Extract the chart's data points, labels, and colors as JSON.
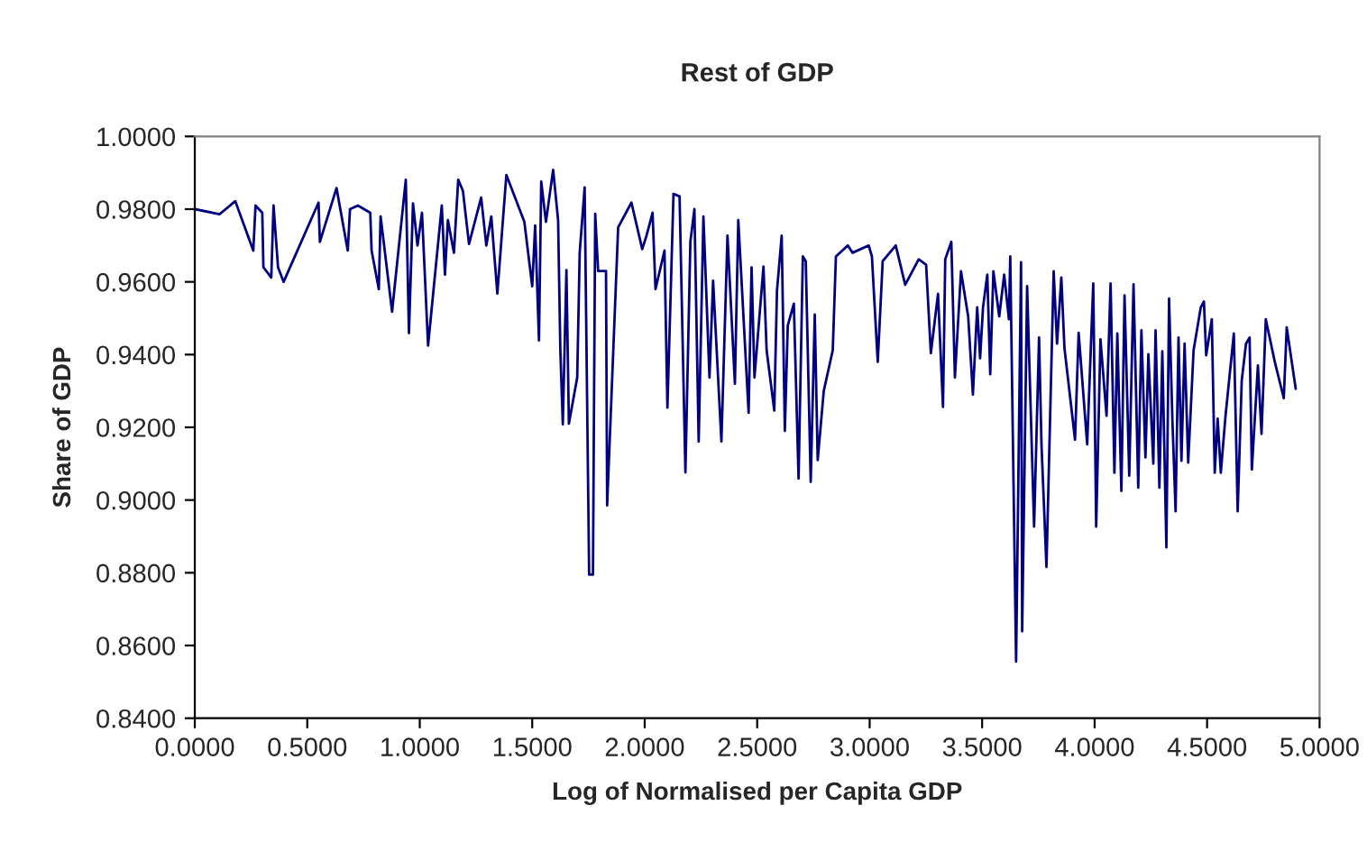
{
  "chart_data": {
    "type": "line",
    "title": "Rest of GDP",
    "xlabel": "Log of Normalised per Capita GDP",
    "ylabel": "Share of GDP",
    "xlim": [
      0,
      5
    ],
    "ylim": [
      0.84,
      1.0
    ],
    "xticks": [
      {
        "value": 0,
        "label": "0.0000"
      },
      {
        "value": 0.5,
        "label": "0.5000"
      },
      {
        "value": 1,
        "label": "1.0000"
      },
      {
        "value": 1.5,
        "label": "1.5000"
      },
      {
        "value": 2,
        "label": "2.0000"
      },
      {
        "value": 2.5,
        "label": "2.5000"
      },
      {
        "value": 3,
        "label": "3.0000"
      },
      {
        "value": 3.5,
        "label": "3.5000"
      },
      {
        "value": 4,
        "label": "4.0000"
      },
      {
        "value": 4.5,
        "label": "4.5000"
      },
      {
        "value": 5,
        "label": "5.0000"
      }
    ],
    "yticks": [
      {
        "value": 0.84,
        "label": "0.8400"
      },
      {
        "value": 0.86,
        "label": "0.8600"
      },
      {
        "value": 0.88,
        "label": "0.8800"
      },
      {
        "value": 0.9,
        "label": "0.9000"
      },
      {
        "value": 0.92,
        "label": "0.9200"
      },
      {
        "value": 0.94,
        "label": "0.9400"
      },
      {
        "value": 0.96,
        "label": "0.9600"
      },
      {
        "value": 0.98,
        "label": "0.9800"
      },
      {
        "value": 1.0,
        "label": "1.0000"
      }
    ],
    "grid": false,
    "legend": false,
    "marker": "none",
    "line_style": "solid",
    "series": [
      {
        "color": "#000080",
        "x": [
          0,
          0.11,
          0.18,
          0.26,
          0.27,
          0.3,
          0.305,
          0.34,
          0.35,
          0.37,
          0.395,
          0.55,
          0.556,
          0.63,
          0.68,
          0.69,
          0.725,
          0.78,
          0.786,
          0.818,
          0.826,
          0.877,
          0.938,
          0.952,
          0.97,
          0.99,
          1.01,
          1.037,
          1.098,
          1.112,
          1.125,
          1.152,
          1.171,
          1.192,
          1.219,
          1.273,
          1.296,
          1.318,
          1.345,
          1.385,
          1.465,
          1.5,
          1.513,
          1.53,
          1.54,
          1.561,
          1.593,
          1.615,
          1.625,
          1.636,
          1.652,
          1.663,
          1.7,
          1.711,
          1.733,
          1.753,
          1.77,
          1.78,
          1.793,
          1.828,
          1.833,
          1.882,
          1.941,
          1.989,
          2.008,
          2.035,
          2.048,
          2.088,
          2.101,
          2.128,
          2.155,
          2.181,
          2.203,
          2.221,
          2.24,
          2.261,
          2.288,
          2.304,
          2.341,
          2.368,
          2.401,
          2.416,
          2.462,
          2.475,
          2.488,
          2.528,
          2.542,
          2.576,
          2.588,
          2.609,
          2.623,
          2.636,
          2.663,
          2.684,
          2.703,
          2.716,
          2.738,
          2.756,
          2.769,
          2.796,
          2.836,
          2.85,
          2.903,
          2.924,
          2.996,
          3.01,
          3.036,
          3.058,
          3.116,
          3.158,
          3.218,
          3.251,
          3.272,
          3.304,
          3.326,
          3.336,
          3.363,
          3.379,
          3.406,
          3.438,
          3.459,
          3.478,
          3.491,
          3.504,
          3.523,
          3.536,
          3.55,
          3.576,
          3.598,
          3.619,
          3.625,
          3.651,
          3.673,
          3.678,
          3.7,
          3.731,
          3.753,
          3.764,
          3.786,
          3.818,
          3.833,
          3.852,
          3.866,
          3.913,
          3.929,
          3.967,
          3.994,
          4.007,
          4.026,
          4.053,
          4.071,
          4.088,
          4.101,
          4.119,
          4.133,
          4.154,
          4.173,
          4.194,
          4.208,
          4.226,
          4.239,
          4.261,
          4.271,
          4.288,
          4.301,
          4.319,
          4.331,
          4.346,
          4.36,
          4.373,
          4.386,
          4.4,
          4.416,
          4.44,
          4.472,
          4.486,
          4.496,
          4.521,
          4.534,
          4.547,
          4.561,
          4.582,
          4.619,
          4.636,
          4.654,
          4.673,
          4.689,
          4.699,
          4.726,
          4.742,
          4.761,
          4.801,
          4.841,
          4.854,
          4.894
        ],
        "values": [
          0.98,
          0.9786,
          0.9822,
          0.9686,
          0.981,
          0.979,
          0.964,
          0.9612,
          0.981,
          0.964,
          0.96,
          0.9818,
          0.971,
          0.9858,
          0.9686,
          0.98,
          0.981,
          0.979,
          0.9686,
          0.958,
          0.978,
          0.9518,
          0.9881,
          0.9459,
          0.9816,
          0.97,
          0.979,
          0.9425,
          0.981,
          0.962,
          0.977,
          0.968,
          0.9881,
          0.985,
          0.9704,
          0.9832,
          0.97,
          0.978,
          0.9568,
          0.9894,
          0.9765,
          0.9588,
          0.9755,
          0.9439,
          0.9876,
          0.9765,
          0.9908,
          0.977,
          0.9412,
          0.9208,
          0.9632,
          0.921,
          0.9337,
          0.968,
          0.986,
          0.8795,
          0.8795,
          0.9787,
          0.963,
          0.963,
          0.8985,
          0.975,
          0.9818,
          0.969,
          0.9727,
          0.979,
          0.958,
          0.9686,
          0.9254,
          0.9842,
          0.9835,
          0.9076,
          0.971,
          0.98,
          0.9161,
          0.978,
          0.9337,
          0.9603,
          0.9161,
          0.9727,
          0.932,
          0.977,
          0.924,
          0.964,
          0.9337,
          0.9642,
          0.9412,
          0.9246,
          0.9575,
          0.9727,
          0.919,
          0.948,
          0.954,
          0.9059,
          0.967,
          0.9657,
          0.905,
          0.951,
          0.911,
          0.93,
          0.9412,
          0.967,
          0.97,
          0.968,
          0.97,
          0.967,
          0.938,
          0.9657,
          0.97,
          0.9592,
          0.9662,
          0.9647,
          0.9404,
          0.9567,
          0.9256,
          0.9662,
          0.971,
          0.9337,
          0.9629,
          0.9505,
          0.929,
          0.953,
          0.939,
          0.953,
          0.962,
          0.9346,
          0.9629,
          0.9505,
          0.962,
          0.9497,
          0.967,
          0.8556,
          0.9654,
          0.8639,
          0.9588,
          0.8927,
          0.9447,
          0.915,
          0.8816,
          0.9629,
          0.943,
          0.9612,
          0.9418,
          0.9166,
          0.946,
          0.9153,
          0.9596,
          0.8927,
          0.9442,
          0.9232,
          0.9596,
          0.9075,
          0.9458,
          0.9025,
          0.9563,
          0.9067,
          0.9593,
          0.9034,
          0.9467,
          0.9117,
          0.9401,
          0.91,
          0.9467,
          0.9034,
          0.9409,
          0.887,
          0.9554,
          0.9216,
          0.8969,
          0.9447,
          0.9108,
          0.943,
          0.9103,
          0.9412,
          0.953,
          0.9546,
          0.9398,
          0.9497,
          0.9075,
          0.9224,
          0.9075,
          0.9232,
          0.9458,
          0.8969,
          0.9328,
          0.943,
          0.9447,
          0.9084,
          0.937,
          0.9182,
          0.9497,
          0.938,
          0.928,
          0.9475,
          0.9306
        ]
      }
    ]
  }
}
